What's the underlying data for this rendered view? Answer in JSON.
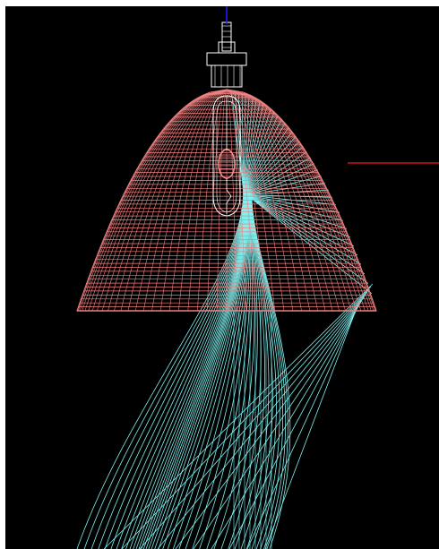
{
  "viewport": {
    "background_color": "#000000",
    "frame_color": "#ffffff"
  },
  "axes": {
    "y_axis_color": "#2020ff",
    "x_axis_color": "#d01020"
  },
  "reflector": {
    "wireframe_color": "#f08080",
    "rings": 56,
    "meridians": 48
  },
  "lamp": {
    "wireframe_color": "#ffffff",
    "bulb_color": "#ff9090"
  },
  "rays": {
    "color": "#80f0f0",
    "count": 40
  }
}
